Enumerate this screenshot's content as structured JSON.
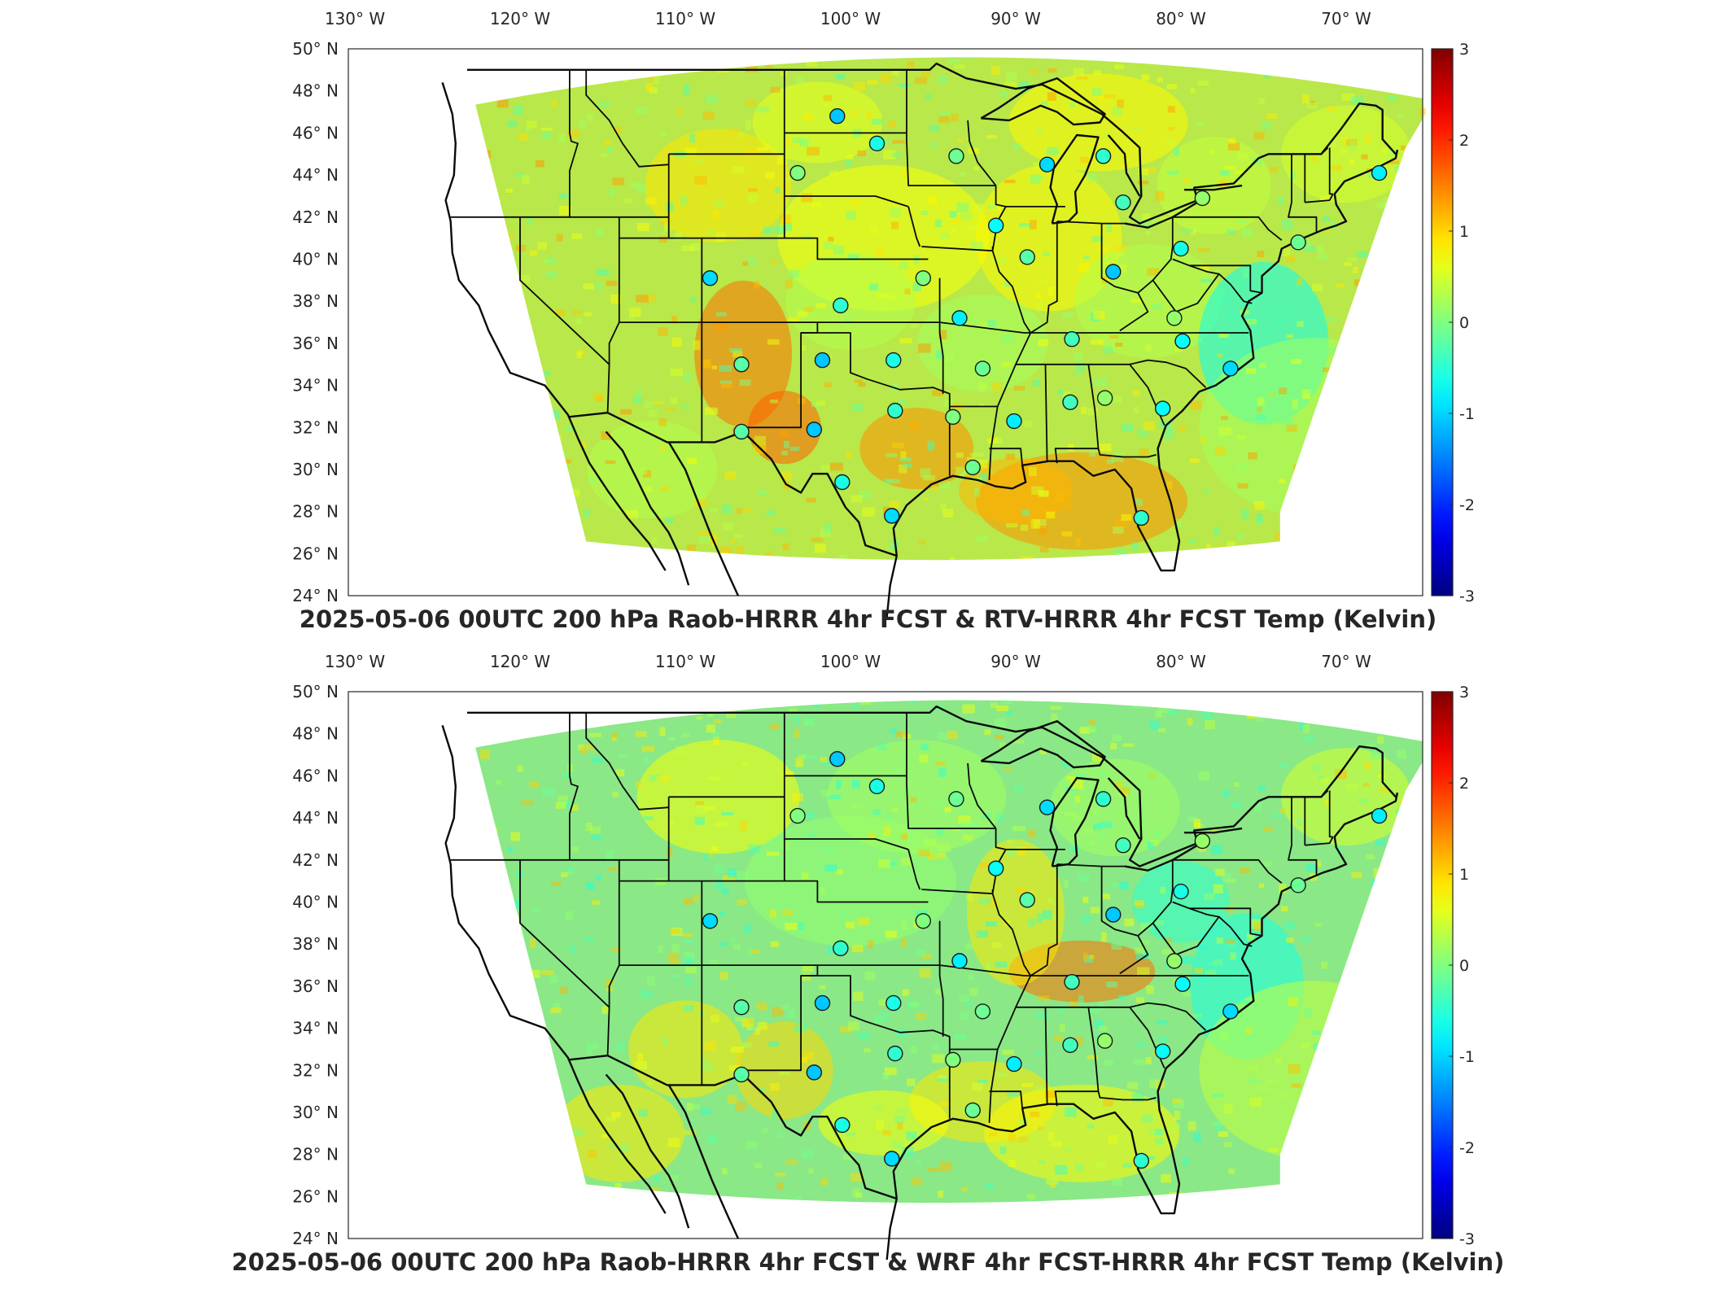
{
  "panels": [
    {
      "title": "2025-05-06 00UTC 200 hPa Raob-HRRR 4hr FCST & RTV-HRRR 4hr FCST Temp (Kelvin)",
      "variant": "rtv"
    },
    {
      "title": "2025-05-06 00UTC 200 hPa Raob-HRRR 4hr FCST & WRF 4hr FCST-HRRR 4hr FCST Temp (Kelvin)",
      "variant": "wrf"
    }
  ],
  "axes": {
    "lon_ticks": [
      "130",
      "120",
      "110",
      "100",
      "90",
      "80",
      "70"
    ],
    "lon_hemi": "W",
    "lat_ticks": [
      "50",
      "48",
      "46",
      "44",
      "42",
      "40",
      "38",
      "36",
      "34",
      "32",
      "30",
      "28",
      "26",
      "24"
    ],
    "lat_hemi": "N",
    "degree_symbol": "°"
  },
  "colorbar": {
    "ticks": [
      "3",
      "2",
      "1",
      "0",
      "-1",
      "-2",
      "-3"
    ],
    "colormap": "jet",
    "range": [
      -3,
      3
    ]
  },
  "stations": [
    {
      "lon": -100.8,
      "lat": 46.8
    },
    {
      "lon": -98.4,
      "lat": 45.5
    },
    {
      "lon": -93.6,
      "lat": 44.9
    },
    {
      "lon": -88.1,
      "lat": 44.5
    },
    {
      "lon": -84.7,
      "lat": 44.9
    },
    {
      "lon": -103.2,
      "lat": 44.1
    },
    {
      "lon": -68.0,
      "lat": 44.1
    },
    {
      "lon": -83.5,
      "lat": 42.7
    },
    {
      "lon": -78.7,
      "lat": 42.9
    },
    {
      "lon": -91.2,
      "lat": 41.6
    },
    {
      "lon": -89.3,
      "lat": 40.1
    },
    {
      "lon": -84.1,
      "lat": 39.4
    },
    {
      "lon": -80.0,
      "lat": 40.5
    },
    {
      "lon": -72.9,
      "lat": 40.8
    },
    {
      "lon": -108.5,
      "lat": 39.1
    },
    {
      "lon": -100.6,
      "lat": 37.8
    },
    {
      "lon": -95.6,
      "lat": 39.1
    },
    {
      "lon": -93.4,
      "lat": 37.2
    },
    {
      "lon": -86.6,
      "lat": 36.2
    },
    {
      "lon": -80.4,
      "lat": 37.2
    },
    {
      "lon": -79.9,
      "lat": 36.1
    },
    {
      "lon": -106.6,
      "lat": 35.0
    },
    {
      "lon": -101.7,
      "lat": 35.2
    },
    {
      "lon": -97.4,
      "lat": 35.2
    },
    {
      "lon": -92.0,
      "lat": 34.8
    },
    {
      "lon": -77.0,
      "lat": 34.8
    },
    {
      "lon": -97.3,
      "lat": 32.8
    },
    {
      "lon": -93.8,
      "lat": 32.5
    },
    {
      "lon": -90.1,
      "lat": 32.3
    },
    {
      "lon": -86.7,
      "lat": 33.2
    },
    {
      "lon": -84.6,
      "lat": 33.4
    },
    {
      "lon": -81.1,
      "lat": 32.9
    },
    {
      "lon": -106.6,
      "lat": 31.8
    },
    {
      "lon": -102.2,
      "lat": 31.9
    },
    {
      "lon": -100.5,
      "lat": 29.4
    },
    {
      "lon": -92.6,
      "lat": 30.1
    },
    {
      "lon": -97.5,
      "lat": 27.8
    },
    {
      "lon": -82.4,
      "lat": 27.7
    }
  ]
}
